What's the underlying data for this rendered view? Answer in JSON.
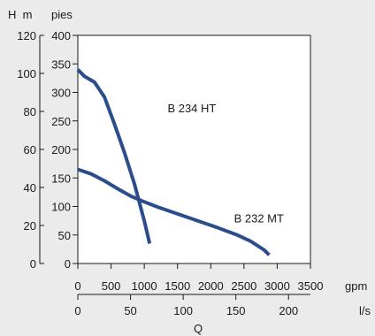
{
  "chart_data": {
    "type": "line",
    "title": "",
    "xlabel": "Q",
    "header_left": "H  m",
    "header_right": "pies",
    "axes": {
      "y_m": {
        "ticks": [
          0,
          20,
          40,
          60,
          80,
          100,
          120
        ],
        "range": [
          0,
          120
        ]
      },
      "y_ft": {
        "ticks": [
          0,
          50,
          100,
          150,
          200,
          250,
          300,
          350,
          400
        ],
        "range": [
          0,
          400
        ]
      },
      "x_gpm": {
        "ticks": [
          0,
          500,
          1000,
          1500,
          2000,
          2500,
          3000,
          3500
        ],
        "range": [
          0,
          3500
        ],
        "unit": "gpm"
      },
      "x_ls": {
        "ticks": [
          0,
          50,
          100,
          150,
          200
        ],
        "range": [
          0,
          220.8
        ],
        "unit": "l/s"
      }
    },
    "grid": false,
    "series": [
      {
        "name": "B 234 HT",
        "color": "#2b4d8c",
        "x_gpm": [
          0,
          100,
          250,
          400,
          550,
          700,
          850,
          1000,
          1080
        ],
        "y_ft": [
          340,
          328,
          318,
          292,
          245,
          195,
          140,
          75,
          35
        ]
      },
      {
        "name": "B 232 MT",
        "color": "#2b4d8c",
        "x_gpm": [
          0,
          200,
          400,
          600,
          800,
          1000,
          1200,
          1500,
          1800,
          2100,
          2400,
          2600,
          2800,
          2880
        ],
        "y_ft": [
          165,
          157,
          145,
          131,
          118,
          108,
          99,
          87,
          75,
          63,
          50,
          39,
          24,
          15
        ]
      }
    ],
    "annotations": [
      {
        "text": "B 234 HT",
        "x_gpm": 1350,
        "y_ft": 265
      },
      {
        "text": "B 232 MT",
        "x_gpm": 2350,
        "y_ft": 72
      }
    ]
  }
}
